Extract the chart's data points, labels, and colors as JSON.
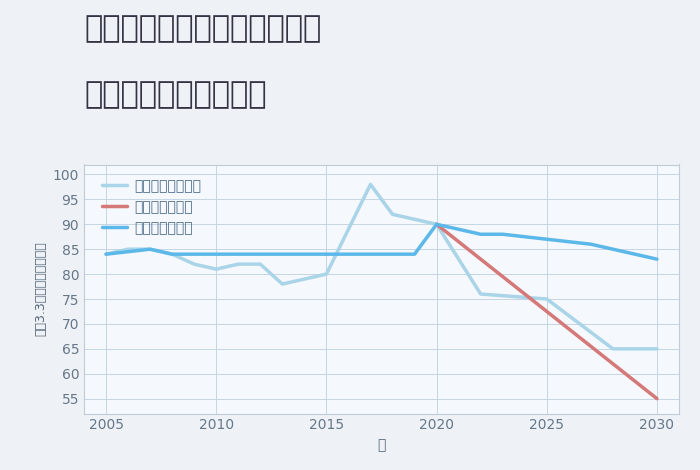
{
  "title_line1": "兵庫県たつの市揖保川町原の",
  "title_line2": "中古戸建ての価格推移",
  "xlabel": "年",
  "ylabel": "坪（3.3㎡）単価（万円）",
  "fig_bg": "#eef2f7",
  "plot_bg": "#f5f8fc",
  "good_scenario": {
    "label": "グッドシナリオ",
    "color": "#5bb8e8",
    "x": [
      2005,
      2007,
      2008,
      2009,
      2010,
      2012,
      2013,
      2015,
      2017,
      2018,
      2019,
      2020,
      2022,
      2023,
      2025,
      2027,
      2030
    ],
    "y": [
      84,
      85,
      84,
      84,
      84,
      84,
      84,
      84,
      84,
      84,
      84,
      90,
      88,
      88,
      87,
      86,
      83
    ]
  },
  "bad_scenario": {
    "label": "バッドシナリオ",
    "color": "#d47878",
    "x": [
      2020,
      2030
    ],
    "y": [
      90,
      55
    ]
  },
  "normal_scenario": {
    "label": "ノーマルシナリオ",
    "color": "#aad4e8",
    "x": [
      2005,
      2006,
      2007,
      2008,
      2009,
      2010,
      2011,
      2012,
      2013,
      2015,
      2017,
      2018,
      2019,
      2020,
      2022,
      2025,
      2028,
      2030
    ],
    "y": [
      84,
      85,
      85,
      84,
      82,
      81,
      82,
      82,
      78,
      80,
      98,
      92,
      91,
      90,
      76,
      75,
      65,
      65
    ]
  },
  "ylim": [
    52,
    102
  ],
  "yticks": [
    55,
    60,
    65,
    70,
    75,
    80,
    85,
    90,
    95,
    100
  ],
  "xlim": [
    2004,
    2031
  ],
  "xticks": [
    2005,
    2010,
    2015,
    2020,
    2025,
    2030
  ],
  "title_fontsize": 22,
  "axis_label_fontsize": 10,
  "legend_fontsize": 10,
  "tick_fontsize": 10,
  "line_width": 2.5
}
